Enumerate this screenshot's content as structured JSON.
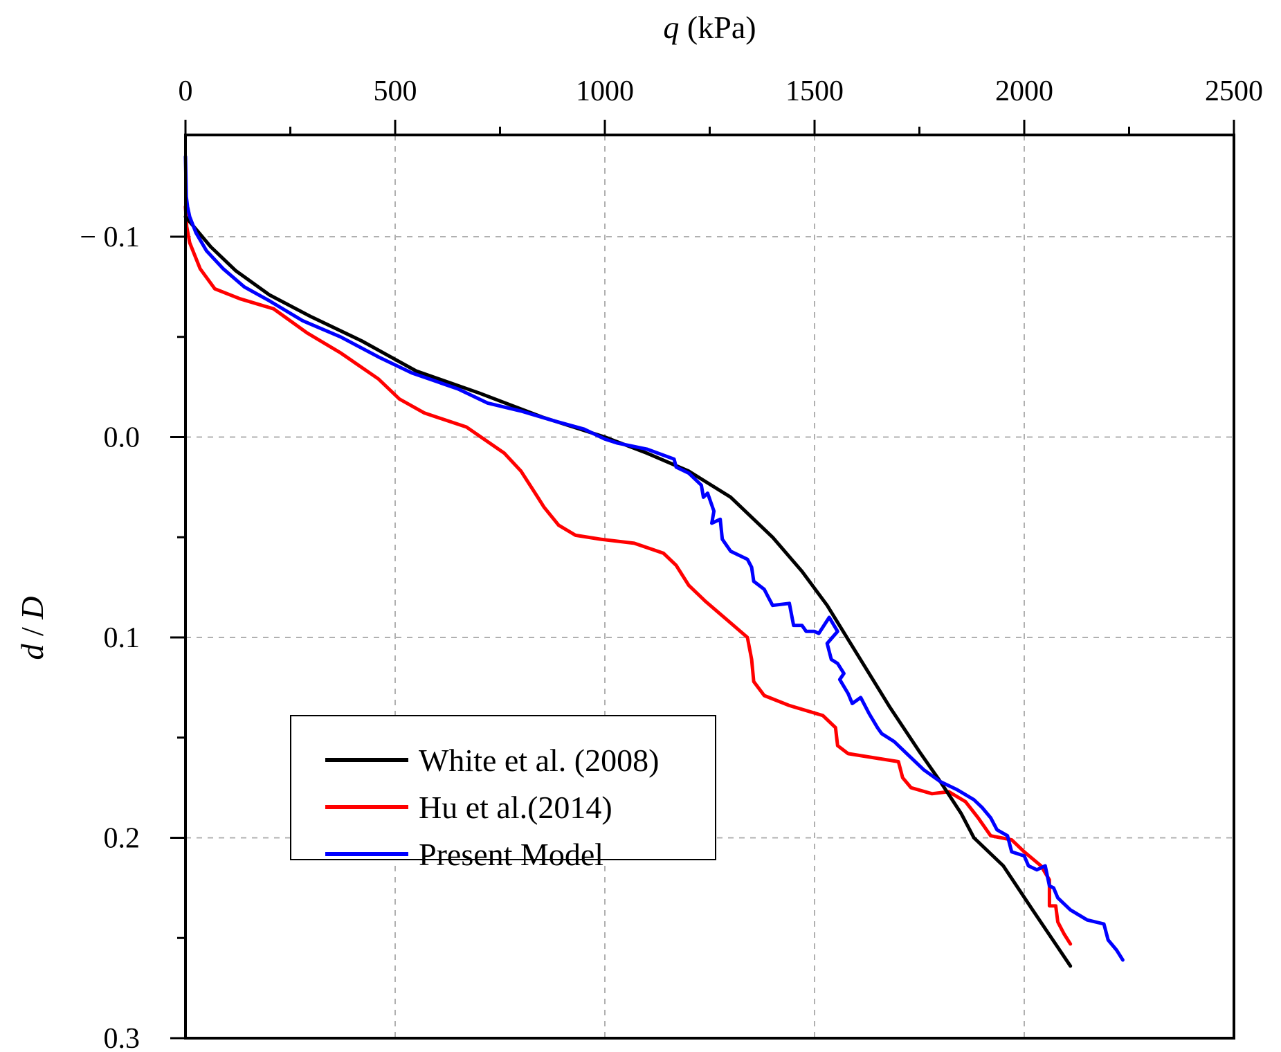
{
  "chart_data": {
    "type": "line",
    "title": "",
    "xlabel": {
      "symbol": "q",
      "unit": "(kPa)"
    },
    "ylabel": {
      "symbol_d": "d",
      "sep": "/",
      "symbol_D": "D"
    },
    "xlim": [
      0,
      2500
    ],
    "ylim": [
      -0.1,
      0.3
    ],
    "x_axis_position": "top",
    "y_inverted": true,
    "x_ticks": [
      0,
      500,
      1000,
      1500,
      2000,
      2500
    ],
    "x_tick_labels": [
      "0",
      "500",
      "1000",
      "1500",
      "2000",
      "2500"
    ],
    "y_ticks": [
      -0.1,
      0.0,
      0.1,
      0.2,
      0.3
    ],
    "y_tick_labels": [
      "− 0.1",
      "0.0",
      "0.1",
      "0.2",
      "0.3"
    ],
    "grid": true,
    "legend": {
      "position": "bottom-left"
    },
    "series": [
      {
        "name": "White et al. (2008)",
        "color": "#000000",
        "x": [
          0,
          20,
          60,
          120,
          200,
          300,
          420,
          550,
          700,
          850,
          1000,
          1100,
          1200,
          1300,
          1400,
          1470,
          1530,
          1580,
          1630,
          1680,
          1750,
          1800,
          1850,
          1880,
          1950,
          2020,
          2110
        ],
        "y": [
          -0.11,
          -0.105,
          -0.095,
          -0.083,
          -0.071,
          -0.06,
          -0.048,
          -0.033,
          -0.022,
          -0.01,
          0.0,
          0.008,
          0.017,
          0.03,
          0.05,
          0.067,
          0.084,
          0.101,
          0.118,
          0.135,
          0.157,
          0.172,
          0.188,
          0.2,
          0.214,
          0.236,
          0.264
        ]
      },
      {
        "name": "Hu et al.(2014)",
        "color": "#ff0000",
        "x": [
          0,
          3,
          10,
          35,
          70,
          130,
          210,
          290,
          370,
          460,
          510,
          570,
          670,
          760,
          800,
          840,
          855,
          890,
          930,
          990,
          1070,
          1140,
          1170,
          1200,
          1240,
          1290,
          1340,
          1350,
          1355,
          1380,
          1440,
          1520,
          1550,
          1555,
          1580,
          1700,
          1710,
          1730,
          1780,
          1820,
          1860,
          1890,
          1920,
          1970,
          2000,
          2040,
          2060,
          2060,
          2075,
          2080,
          2095,
          2110
        ],
        "y": [
          -0.115,
          -0.105,
          -0.097,
          -0.084,
          -0.074,
          -0.069,
          -0.064,
          -0.052,
          -0.042,
          -0.029,
          -0.019,
          -0.012,
          -0.005,
          0.008,
          0.017,
          0.03,
          0.035,
          0.044,
          0.049,
          0.051,
          0.053,
          0.058,
          0.064,
          0.074,
          0.082,
          0.091,
          0.1,
          0.111,
          0.122,
          0.129,
          0.134,
          0.139,
          0.145,
          0.154,
          0.158,
          0.162,
          0.17,
          0.175,
          0.178,
          0.177,
          0.182,
          0.19,
          0.199,
          0.201,
          0.207,
          0.214,
          0.221,
          0.234,
          0.234,
          0.242,
          0.248,
          0.253
        ]
      },
      {
        "name": "Present Model",
        "color": "#0000ff",
        "x": [
          0,
          2,
          5,
          10,
          25,
          50,
          90,
          140,
          200,
          280,
          370,
          460,
          540,
          650,
          720,
          800,
          880,
          950,
          1000,
          1030,
          1100,
          1165,
          1170,
          1200,
          1230,
          1235,
          1245,
          1260,
          1255,
          1275,
          1280,
          1300,
          1340,
          1350,
          1355,
          1380,
          1390,
          1400,
          1440,
          1450,
          1470,
          1480,
          1500,
          1510,
          1535,
          1555,
          1530,
          1540,
          1555,
          1570,
          1560,
          1580,
          1590,
          1610,
          1630,
          1650,
          1660,
          1690,
          1720,
          1760,
          1800,
          1840,
          1880,
          1900,
          1920,
          1935,
          1960,
          1970,
          2000,
          2010,
          2030,
          2050,
          2060,
          2070,
          2080,
          2090,
          2110,
          2150,
          2190,
          2200,
          2220,
          2235
        ],
        "y": [
          -0.14,
          -0.12,
          -0.115,
          -0.11,
          -0.102,
          -0.093,
          -0.084,
          -0.075,
          -0.068,
          -0.058,
          -0.05,
          -0.04,
          -0.032,
          -0.024,
          -0.017,
          -0.013,
          -0.008,
          -0.004,
          0.001,
          0.003,
          0.006,
          0.011,
          0.015,
          0.018,
          0.024,
          0.03,
          0.028,
          0.037,
          0.043,
          0.041,
          0.051,
          0.057,
          0.061,
          0.065,
          0.072,
          0.076,
          0.08,
          0.084,
          0.083,
          0.094,
          0.094,
          0.097,
          0.097,
          0.098,
          0.09,
          0.097,
          0.103,
          0.111,
          0.113,
          0.118,
          0.121,
          0.128,
          0.133,
          0.13,
          0.138,
          0.145,
          0.148,
          0.152,
          0.158,
          0.166,
          0.172,
          0.176,
          0.181,
          0.185,
          0.19,
          0.196,
          0.199,
          0.207,
          0.209,
          0.214,
          0.216,
          0.214,
          0.224,
          0.225,
          0.23,
          0.232,
          0.236,
          0.241,
          0.243,
          0.251,
          0.256,
          0.261
        ]
      }
    ]
  }
}
